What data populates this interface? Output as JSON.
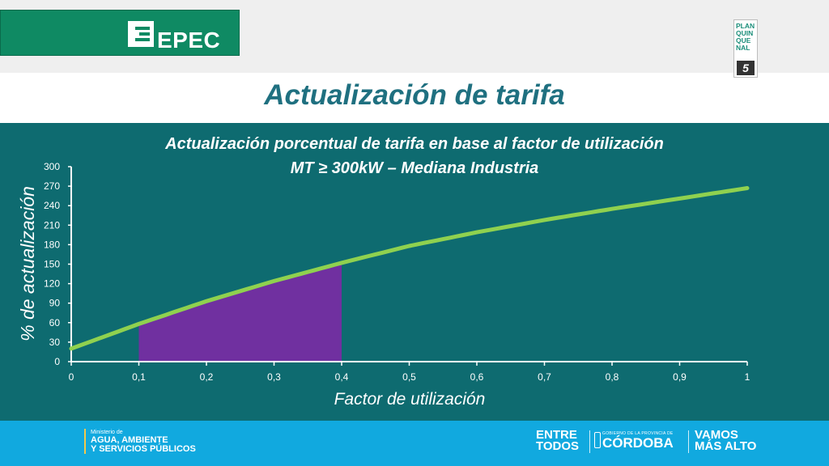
{
  "header": {
    "logo_text": "EPEC",
    "badge_text": "PLAN QUIN QUE NAL",
    "badge_number": "5"
  },
  "slide": {
    "title": "Actualización de tarifa"
  },
  "chart_data": {
    "type": "line",
    "title": "Actualización porcentual de tarifa en base al factor de utilización",
    "subtitle": "MT ≥  300kW – Mediana Industria",
    "xlabel": "Factor de utilización",
    "ylabel": "% de actualización",
    "x_ticks": [
      "0",
      "0,1",
      "0,2",
      "0,3",
      "0,4",
      "0,5",
      "0,6",
      "0,7",
      "0,8",
      "0,9",
      "1"
    ],
    "y_ticks": [
      "0",
      "30",
      "60",
      "90",
      "120",
      "150",
      "180",
      "210",
      "240",
      "270",
      "300"
    ],
    "xlim": [
      0,
      1
    ],
    "ylim": [
      0,
      300
    ],
    "grid": false,
    "series": [
      {
        "x": [
          0,
          0.1,
          0.2,
          0.3,
          0.4,
          0.5,
          0.6,
          0.7,
          0.8,
          0.9,
          1.0
        ],
        "values": [
          20,
          58,
          93,
          124,
          152,
          178,
          199,
          218,
          235,
          251,
          267
        ],
        "color": "#8fd14f"
      }
    ],
    "shaded_region": {
      "x_from": 0.1,
      "x_to": 0.4,
      "color": "#7030a0"
    }
  },
  "footer": {
    "ministry_prefix": "Ministerio de",
    "ministry_line1": "AGUA, AMBIENTE",
    "ministry_line2": "Y SERVICIOS PÚBLICOS",
    "entre_line1": "ENTRE",
    "entre_line2": "TODOS",
    "gov_small": "GOBIERNO DE LA PROVINCIA DE",
    "gov_big": "CÓRDOBA",
    "vamos_line1": "VAMOS",
    "vamos_line2": "MÁS ALTO"
  },
  "colors": {
    "brand_green": "#0f8a63",
    "title_color": "#1f7080",
    "panel_bg": "#0e6b70",
    "footer_bg": "#11a9df"
  }
}
